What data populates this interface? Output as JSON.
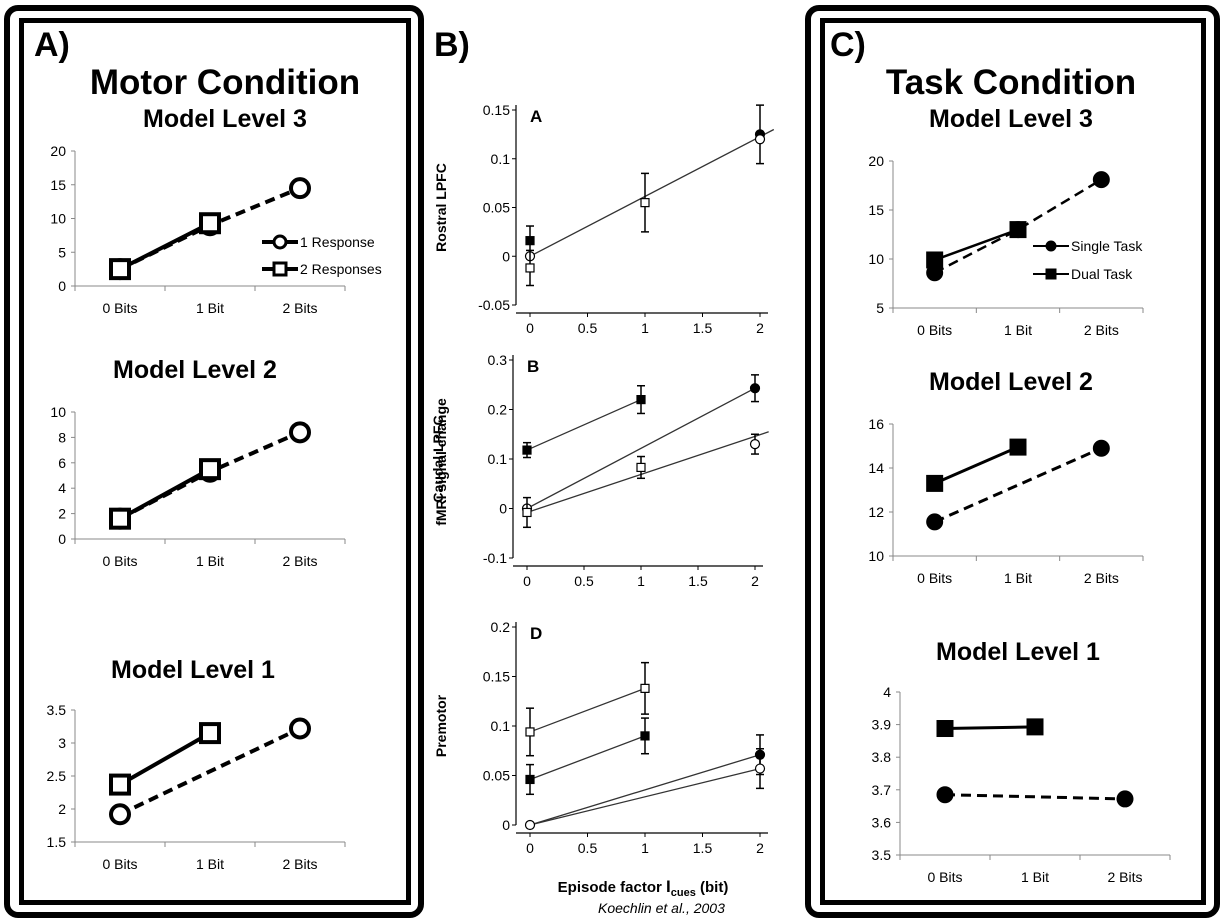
{
  "panels": {
    "a": {
      "letter": "A)",
      "title": "Motor Condition"
    },
    "b": {
      "letter": "B)",
      "xlabel_main": "Episode factor ",
      "xlabel_bold": "I",
      "xlabel_sub": "cues",
      "xlabel_unit": " (bit)",
      "citation": "Koechlin et al., 2003",
      "ylabel_top": "fMRI signal change"
    },
    "c": {
      "letter": "C)",
      "title": "Task Condition"
    }
  },
  "chart_data": [
    {
      "id": "a3",
      "type": "line",
      "title": "Model Level 3",
      "categories": [
        "0 Bits",
        "1 Bit",
        "2 Bits"
      ],
      "yticks": [
        "0",
        "5",
        "10",
        "15",
        "20"
      ],
      "ylim": [
        0,
        20
      ],
      "series": [
        {
          "name": "1 Response",
          "values": [
            2.5,
            9.0,
            14.5
          ],
          "marker": "circle-open",
          "dash": true
        },
        {
          "name": "2 Responses",
          "values": [
            2.5,
            9.3,
            null
          ],
          "marker": "square-open",
          "dash": false
        }
      ],
      "legend": "inside-right"
    },
    {
      "id": "a2",
      "type": "line",
      "title": "Model Level 2",
      "categories": [
        "0 Bits",
        "1 Bit",
        "2 Bits"
      ],
      "yticks": [
        "0",
        "2",
        "4",
        "6",
        "8",
        "10"
      ],
      "ylim": [
        0,
        10
      ],
      "series": [
        {
          "name": "1 Response",
          "values": [
            1.6,
            5.3,
            8.4
          ],
          "marker": "circle-open",
          "dash": true
        },
        {
          "name": "2 Responses",
          "values": [
            1.6,
            5.5,
            null
          ],
          "marker": "square-open",
          "dash": false
        }
      ]
    },
    {
      "id": "a1",
      "type": "line",
      "title": "Model Level 1",
      "categories": [
        "0 Bits",
        "1 Bit",
        "2 Bits"
      ],
      "yticks": [
        "1.5",
        "2",
        "2.5",
        "3",
        "3.5"
      ],
      "ylim": [
        1.5,
        3.5
      ],
      "series": [
        {
          "name": "1 Response",
          "values": [
            1.92,
            null,
            3.22
          ],
          "marker": "circle-open",
          "dash": true
        },
        {
          "name": "2 Responses",
          "values": [
            2.37,
            3.15,
            null
          ],
          "marker": "square-open",
          "dash": false
        }
      ]
    },
    {
      "id": "bA",
      "type": "scatter",
      "label": "A",
      "ylabel": "Rostral  LPFC",
      "xticks": [
        "0",
        "0.5",
        "1",
        "1.5",
        "2"
      ],
      "xlim": [
        0,
        2
      ],
      "yticks": [
        "-0.05",
        "0",
        "0.05",
        "0.1",
        "0.15"
      ],
      "ylim": [
        -0.05,
        0.15
      ],
      "points": [
        {
          "x": 0,
          "y": 0.016,
          "err": 0.015,
          "marker": "square-filled"
        },
        {
          "x": 0,
          "y": 0.0,
          "err": 0.0,
          "marker": "circle-open"
        },
        {
          "x": 0,
          "y": -0.012,
          "err": 0.018,
          "marker": "square-open"
        },
        {
          "x": 1,
          "y": 0.055,
          "err": 0.03,
          "marker": "square-open"
        },
        {
          "x": 2,
          "y": 0.125,
          "err": 0.03,
          "marker": "circle-filled"
        },
        {
          "x": 2,
          "y": 0.12,
          "err": 0.0,
          "marker": "circle-open"
        }
      ],
      "lines": [
        [
          [
            0,
            0.0
          ],
          [
            2.12,
            0.13
          ]
        ]
      ]
    },
    {
      "id": "bB",
      "type": "scatter",
      "label": "B",
      "ylabel": "Caudal  LPFC",
      "xticks": [
        "0",
        "0.5",
        "1",
        "1.5",
        "2"
      ],
      "xlim": [
        0,
        2
      ],
      "yticks": [
        "-0.1",
        "0",
        "0.1",
        "0.2",
        "0.3"
      ],
      "ylim": [
        -0.1,
        0.3
      ],
      "points": [
        {
          "x": 0,
          "y": 0.118,
          "err": 0.015,
          "marker": "square-filled"
        },
        {
          "x": 0,
          "y": 0.0,
          "err": 0.0,
          "marker": "circle-open"
        },
        {
          "x": 0,
          "y": -0.008,
          "err": 0.03,
          "marker": "square-open"
        },
        {
          "x": 1,
          "y": 0.22,
          "err": 0.028,
          "marker": "square-filled"
        },
        {
          "x": 1,
          "y": 0.083,
          "err": 0.022,
          "marker": "square-open"
        },
        {
          "x": 2,
          "y": 0.243,
          "err": 0.027,
          "marker": "circle-filled"
        },
        {
          "x": 2,
          "y": 0.13,
          "err": 0.02,
          "marker": "circle-open"
        }
      ],
      "lines": [
        [
          [
            0,
            0.118
          ],
          [
            1,
            0.22
          ]
        ],
        [
          [
            0,
            0.0
          ],
          [
            2,
            0.243
          ]
        ],
        [
          [
            0,
            -0.008
          ],
          [
            2.12,
            0.155
          ]
        ]
      ]
    },
    {
      "id": "bD",
      "type": "scatter",
      "label": "D",
      "ylabel": "Premotor",
      "xticks": [
        "0",
        "0.5",
        "1",
        "1.5",
        "2"
      ],
      "xlim": [
        0,
        2
      ],
      "yticks": [
        "0",
        "0.05",
        "0.1",
        "0.15",
        "0.2"
      ],
      "ylim": [
        0,
        0.2
      ],
      "points": [
        {
          "x": 0,
          "y": 0.094,
          "err": 0.024,
          "marker": "square-open"
        },
        {
          "x": 0,
          "y": 0.046,
          "err": 0.015,
          "marker": "square-filled"
        },
        {
          "x": 0,
          "y": 0.0,
          "err": 0.0,
          "marker": "circle-open"
        },
        {
          "x": 1,
          "y": 0.138,
          "err": 0.026,
          "marker": "square-open"
        },
        {
          "x": 1,
          "y": 0.09,
          "err": 0.018,
          "marker": "square-filled"
        },
        {
          "x": 2,
          "y": 0.071,
          "err": 0.02,
          "marker": "circle-filled"
        },
        {
          "x": 2,
          "y": 0.057,
          "err": 0.02,
          "marker": "circle-open"
        }
      ],
      "lines": [
        [
          [
            0,
            0.094
          ],
          [
            1,
            0.138
          ]
        ],
        [
          [
            0,
            0.046
          ],
          [
            1,
            0.09
          ]
        ],
        [
          [
            0,
            0
          ],
          [
            2,
            0.071
          ]
        ],
        [
          [
            0,
            0
          ],
          [
            2,
            0.057
          ]
        ]
      ]
    },
    {
      "id": "c3",
      "type": "line",
      "title": "Model Level 3",
      "categories": [
        "0 Bits",
        "1 Bit",
        "2 Bits"
      ],
      "yticks": [
        "5",
        "10",
        "15",
        "20"
      ],
      "ylim": [
        5,
        20
      ],
      "series": [
        {
          "name": "Single Task",
          "values": [
            8.6,
            13.0,
            18.1
          ],
          "marker": "circle-filled",
          "dash": true
        },
        {
          "name": "Dual Task",
          "values": [
            9.9,
            13.0,
            null
          ],
          "marker": "square-filled",
          "dash": false
        }
      ],
      "legend": "inside-right"
    },
    {
      "id": "c2",
      "type": "line",
      "title": "Model Level 2",
      "categories": [
        "0 Bits",
        "1 Bit",
        "2 Bits"
      ],
      "yticks": [
        "10",
        "12",
        "14",
        "16"
      ],
      "ylim": [
        10,
        16
      ],
      "series": [
        {
          "name": "Single Task",
          "values": [
            11.55,
            null,
            14.9
          ],
          "marker": "circle-filled",
          "dash": true
        },
        {
          "name": "Dual Task",
          "values": [
            13.3,
            14.95,
            null
          ],
          "marker": "square-filled",
          "dash": false
        }
      ]
    },
    {
      "id": "c1",
      "type": "line",
      "title": "Model Level 1",
      "categories": [
        "0 Bits",
        "1 Bit",
        "2 Bits"
      ],
      "yticks": [
        "3.5",
        "3.6",
        "3.7",
        "3.8",
        "3.9",
        "4"
      ],
      "ylim": [
        3.5,
        4.0
      ],
      "series": [
        {
          "name": "Single Task",
          "values": [
            3.685,
            null,
            3.672
          ],
          "marker": "circle-filled",
          "dash": true
        },
        {
          "name": "Dual Task",
          "values": [
            3.888,
            3.893,
            null
          ],
          "marker": "square-filled",
          "dash": false
        }
      ]
    }
  ]
}
